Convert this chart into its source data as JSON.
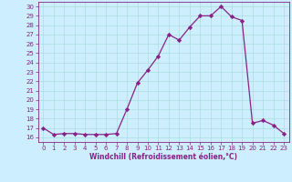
{
  "x": [
    0,
    1,
    2,
    3,
    4,
    5,
    6,
    7,
    8,
    9,
    10,
    11,
    12,
    13,
    14,
    15,
    16,
    17,
    18,
    19,
    20,
    21,
    22,
    23
  ],
  "y": [
    17.0,
    16.3,
    16.4,
    16.4,
    16.3,
    16.3,
    16.3,
    16.4,
    19.0,
    21.8,
    23.2,
    24.7,
    27.0,
    26.4,
    27.8,
    29.0,
    29.0,
    30.0,
    28.9,
    28.5,
    17.5,
    17.8,
    17.3,
    16.4
  ],
  "line_color": "#882288",
  "marker": "D",
  "marker_size": 2.2,
  "bg_color": "#cceeff",
  "grid_color": "#aadddd",
  "xlabel": "Windchill (Refroidissement éolien,°C)",
  "xlabel_color": "#882288",
  "tick_color": "#882288",
  "ylim": [
    15.5,
    30.5
  ],
  "xlim": [
    -0.5,
    23.5
  ],
  "yticks": [
    16,
    17,
    18,
    19,
    20,
    21,
    22,
    23,
    24,
    25,
    26,
    27,
    28,
    29,
    30
  ],
  "xticks": [
    0,
    1,
    2,
    3,
    4,
    5,
    6,
    7,
    8,
    9,
    10,
    11,
    12,
    13,
    14,
    15,
    16,
    17,
    18,
    19,
    20,
    21,
    22,
    23
  ],
  "tick_fontsize": 5.0,
  "xlabel_fontsize": 5.5
}
